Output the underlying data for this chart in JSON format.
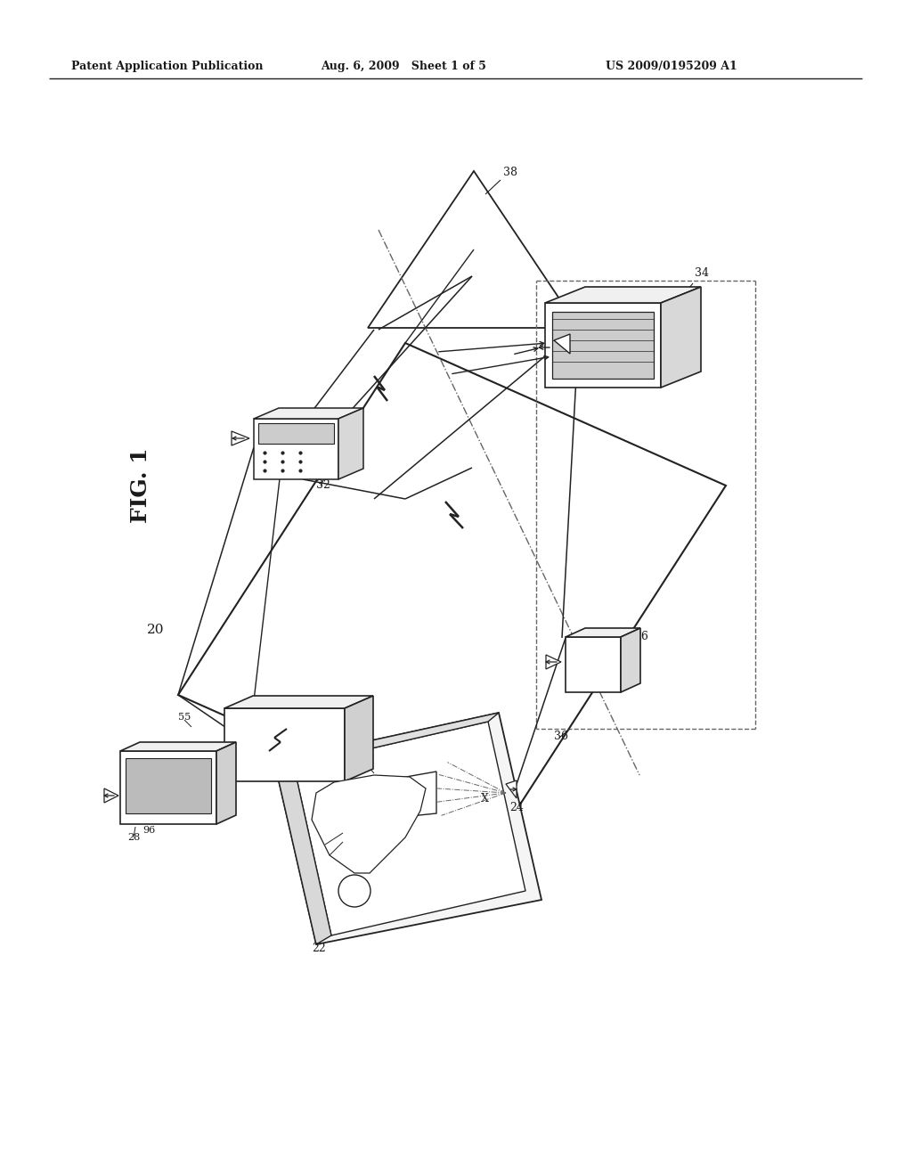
{
  "background_color": "#ffffff",
  "header_text": "Patent Application Publication",
  "header_date": "Aug. 6, 2009   Sheet 1 of 5",
  "header_patent": "US 2009/0195209 A1",
  "fig_label": "FIG. 1",
  "text_color": "#1a1a1a",
  "line_color": "#222222",
  "dashed_color": "#666666",
  "page_width": 10.24,
  "page_height": 13.2
}
